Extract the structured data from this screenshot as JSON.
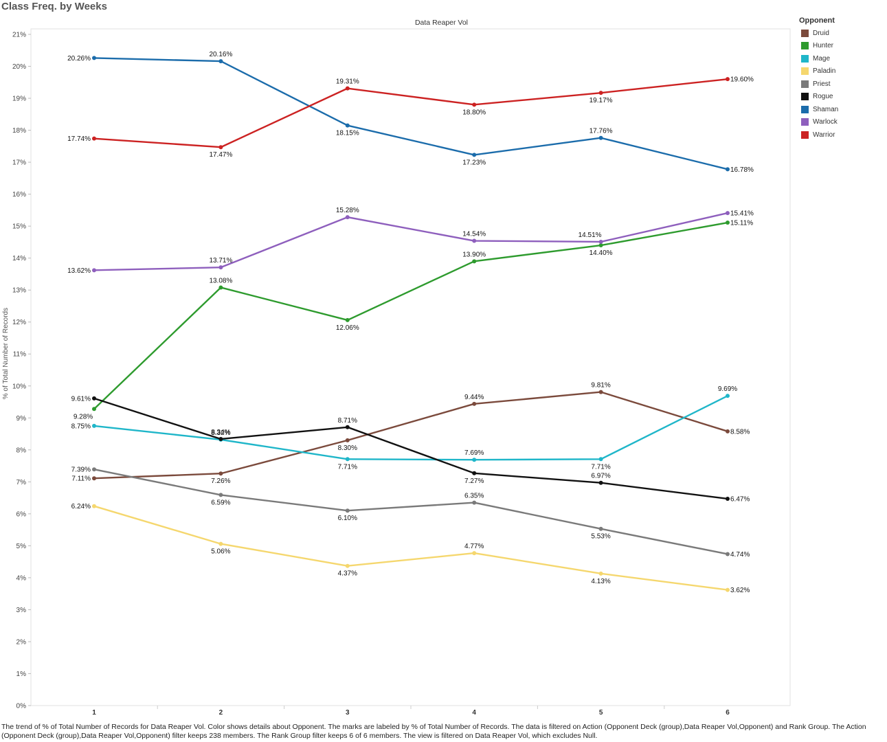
{
  "page_title": "Class Freq. by Weeks",
  "chart_data": {
    "type": "line",
    "title": "Data Reaper Vol",
    "xlabel": "",
    "ylabel": "% of Total Number of Records",
    "categories": [
      "1",
      "2",
      "3",
      "4",
      "5",
      "6"
    ],
    "ylim": [
      0,
      21
    ],
    "yticks": [
      "0%",
      "1%",
      "2%",
      "3%",
      "4%",
      "5%",
      "6%",
      "7%",
      "8%",
      "9%",
      "10%",
      "11%",
      "12%",
      "13%",
      "14%",
      "15%",
      "16%",
      "17%",
      "18%",
      "19%",
      "20%",
      "21%"
    ],
    "grid": false,
    "legend_title": "Opponent",
    "legend_position": "right",
    "series": [
      {
        "name": "Druid",
        "color": "#7b4a3c",
        "values": [
          7.11,
          7.26,
          8.3,
          9.44,
          9.81,
          8.58
        ],
        "labels": [
          "7.11%",
          "7.26%",
          "8.30%",
          "9.44%",
          "9.81%",
          "8.58%"
        ]
      },
      {
        "name": "Hunter",
        "color": "#2e9b2e",
        "values": [
          9.28,
          13.08,
          12.06,
          13.9,
          14.4,
          15.11
        ],
        "labels": [
          "9.28%",
          "13.08%",
          "12.06%",
          "13.90%",
          "14.40%",
          "15.11%"
        ]
      },
      {
        "name": "Mage",
        "color": "#1fb6c9",
        "values": [
          8.75,
          8.32,
          7.71,
          7.69,
          7.71,
          9.69
        ],
        "labels": [
          "8.75%",
          "8.32%",
          "7.71%",
          "7.69%",
          "7.71%",
          "9.69%"
        ]
      },
      {
        "name": "Paladin",
        "color": "#f5d76e",
        "values": [
          6.24,
          5.06,
          4.37,
          4.77,
          4.13,
          3.62
        ],
        "labels": [
          "6.24%",
          "5.06%",
          "4.37%",
          "4.77%",
          "4.13%",
          "3.62%"
        ]
      },
      {
        "name": "Priest",
        "color": "#7a7a7a",
        "values": [
          7.39,
          6.59,
          6.1,
          6.35,
          5.53,
          4.74
        ],
        "labels": [
          "7.39%",
          "6.59%",
          "6.10%",
          "6.35%",
          "5.53%",
          "4.74%"
        ]
      },
      {
        "name": "Rogue",
        "color": "#111111",
        "values": [
          9.61,
          8.34,
          8.71,
          7.27,
          6.97,
          6.47
        ],
        "labels": [
          "9.61%",
          "8.34%",
          "8.71%",
          "7.27%",
          "6.97%",
          "6.47%"
        ]
      },
      {
        "name": "Shaman",
        "color": "#1b6cab",
        "values": [
          20.26,
          20.16,
          18.15,
          17.23,
          17.76,
          16.78
        ],
        "labels": [
          "20.26%",
          "20.16%",
          "18.15%",
          "17.23%",
          "17.76%",
          "16.78%"
        ]
      },
      {
        "name": "Warlock",
        "color": "#8e5fbd",
        "values": [
          13.62,
          13.71,
          15.28,
          14.54,
          14.51,
          15.41
        ],
        "labels": [
          "13.62%",
          "13.71%",
          "15.28%",
          "14.54%",
          "14.51%",
          "15.41%"
        ]
      },
      {
        "name": "Warrior",
        "color": "#cc2222",
        "values": [
          17.74,
          17.47,
          19.31,
          18.8,
          19.17,
          19.6
        ],
        "labels": [
          "17.74%",
          "17.47%",
          "19.31%",
          "18.80%",
          "19.17%",
          "19.60%"
        ]
      }
    ]
  },
  "caption": "The trend of % of Total Number of Records for Data Reaper Vol.  Color shows details about Opponent.  The marks are labeled by % of Total Number of Records. The data is filtered on Action (Opponent Deck (group),Data Reaper Vol,Opponent) and Rank Group. The Action (Opponent Deck (group),Data Reaper Vol,Opponent) filter keeps 238 members. The Rank Group filter keeps 6 of 6 members. The view is filtered on Data Reaper Vol, which excludes Null."
}
